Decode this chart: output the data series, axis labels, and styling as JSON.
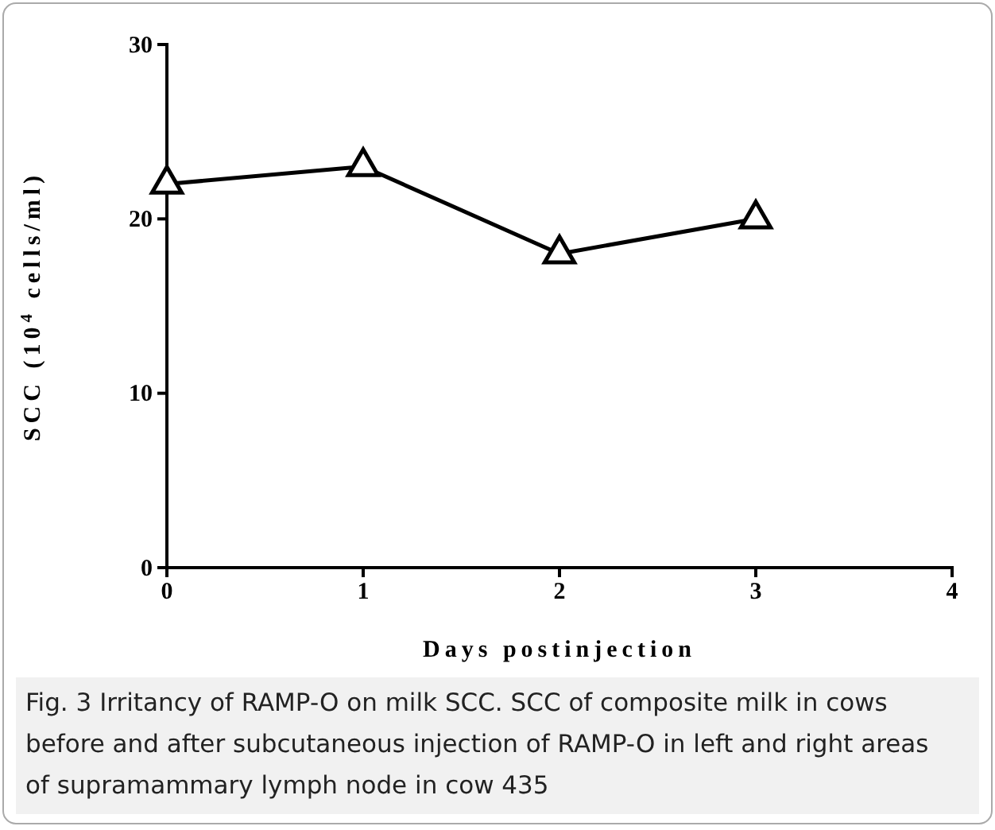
{
  "chart_data": {
    "type": "line",
    "x": [
      0,
      1,
      2,
      3
    ],
    "series": [
      {
        "color": "#000000",
        "values": [
          22,
          23,
          18,
          20
        ]
      }
    ],
    "xlabel": "Days postinjection",
    "ylabel": "SCC (10$^{4}$ cells/ml)",
    "xlim": [
      0,
      4
    ],
    "xticks": [
      0,
      1,
      2,
      3,
      4
    ],
    "ylim": [
      0,
      30
    ],
    "yticks": [
      0,
      10,
      20,
      30
    ],
    "marker": "triangle",
    "line_style": "solid",
    "grid": false,
    "annotations": [
      "Fig. 3 Irritancy of RAMP-O on milk SCC. SCC of composite milk in cows before and after subcutaneous injection of RAMP-O in left and right areas of supramammary lymph node in cow 435"
    ]
  }
}
